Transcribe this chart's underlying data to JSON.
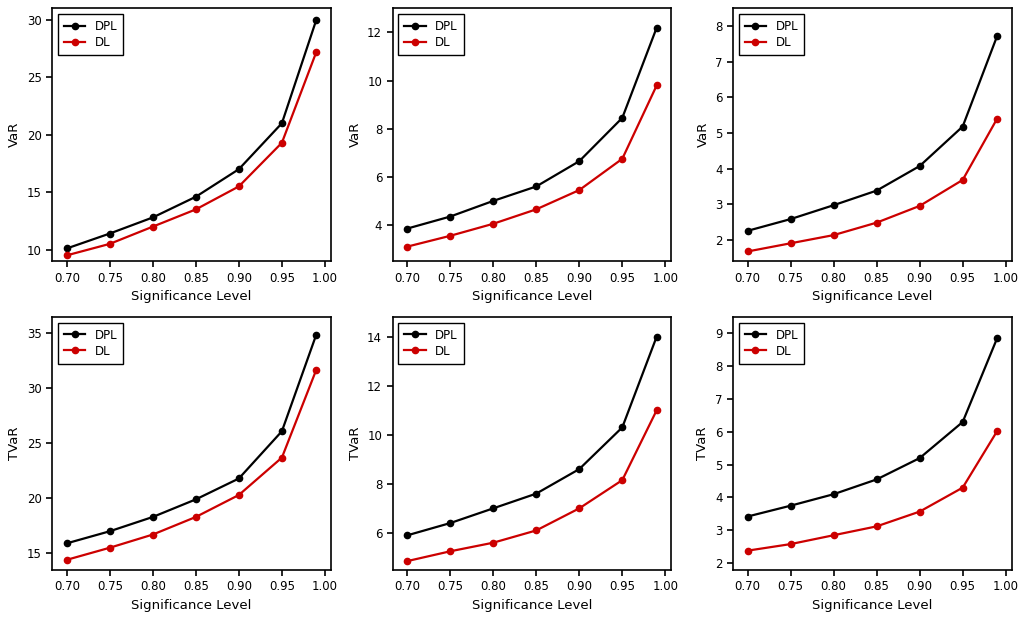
{
  "x": [
    0.7,
    0.75,
    0.8,
    0.85,
    0.9,
    0.95,
    0.99
  ],
  "var_dpl_1": [
    10.1,
    11.4,
    12.8,
    14.6,
    17.0,
    21.0,
    30.0
  ],
  "var_dl_1": [
    9.5,
    10.5,
    12.0,
    13.5,
    15.5,
    19.3,
    27.2
  ],
  "var_dpl_2": [
    3.85,
    4.35,
    5.0,
    5.6,
    6.65,
    8.45,
    12.2
  ],
  "var_dl_2": [
    3.1,
    3.55,
    4.05,
    4.65,
    5.45,
    6.75,
    9.8
  ],
  "var_dpl_3": [
    2.25,
    2.58,
    2.97,
    3.38,
    4.07,
    5.18,
    7.72
  ],
  "var_dl_3": [
    1.67,
    1.9,
    2.13,
    2.48,
    2.95,
    3.68,
    5.4
  ],
  "tvar_dpl_1": [
    15.9,
    17.0,
    18.3,
    19.9,
    21.8,
    26.1,
    34.9
  ],
  "tvar_dl_1": [
    14.4,
    15.5,
    16.7,
    18.3,
    20.3,
    23.7,
    31.7
  ],
  "tvar_dpl_2": [
    5.9,
    6.4,
    7.0,
    7.6,
    8.6,
    10.3,
    14.0
  ],
  "tvar_dl_2": [
    4.85,
    5.25,
    5.6,
    6.1,
    7.0,
    8.15,
    11.0
  ],
  "tvar_dpl_3": [
    3.42,
    3.75,
    4.1,
    4.55,
    5.2,
    6.3,
    8.85
  ],
  "tvar_dl_3": [
    2.38,
    2.58,
    2.85,
    3.12,
    3.57,
    4.3,
    6.02
  ],
  "dpl_color": "#000000",
  "dl_color": "#cc0000",
  "bg_color": "#ffffff",
  "xlabel": "Significance Level",
  "var_ylabel": "VaR",
  "tvar_ylabel": "TVaR",
  "var1_ylim": [
    9.0,
    31.0
  ],
  "var1_yticks": [
    10,
    15,
    20,
    25,
    30
  ],
  "var2_ylim": [
    2.5,
    13.0
  ],
  "var2_yticks": [
    4,
    6,
    8,
    10,
    12
  ],
  "var3_ylim": [
    1.4,
    8.5
  ],
  "var3_yticks": [
    2,
    3,
    4,
    5,
    6,
    7,
    8
  ],
  "tvar1_ylim": [
    13.5,
    36.5
  ],
  "tvar1_yticks": [
    15,
    20,
    25,
    30,
    35
  ],
  "tvar2_ylim": [
    4.5,
    14.8
  ],
  "tvar2_yticks": [
    6,
    8,
    10,
    12,
    14
  ],
  "tvar3_ylim": [
    1.8,
    9.5
  ],
  "tvar3_yticks": [
    2,
    3,
    4,
    5,
    6,
    7,
    8,
    9
  ],
  "xlim": [
    0.683,
    1.007
  ],
  "xticks": [
    0.7,
    0.75,
    0.8,
    0.85,
    0.9,
    0.95,
    1.0
  ]
}
